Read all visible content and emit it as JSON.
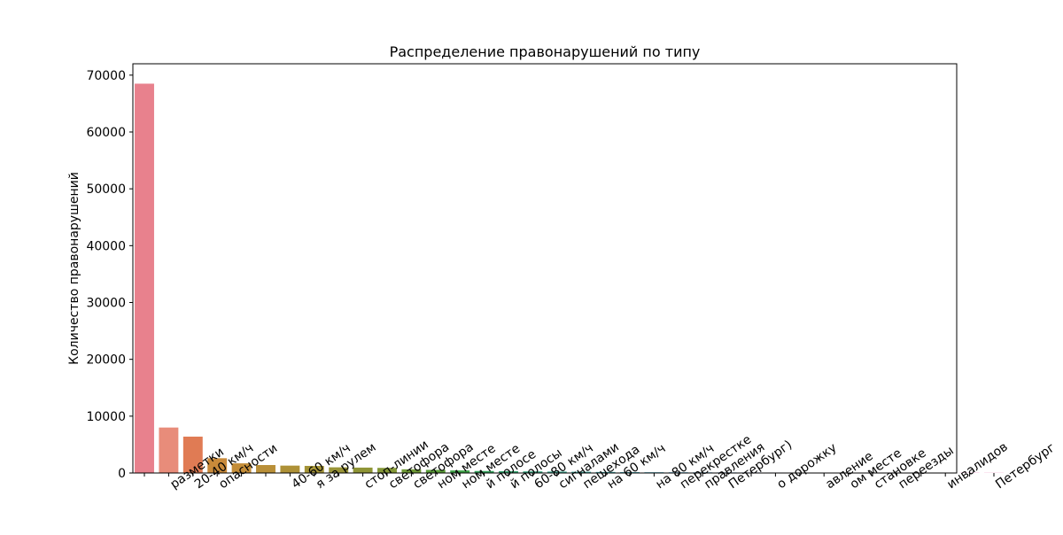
{
  "chart_data": {
    "type": "bar",
    "title": "Распределение правонарушений по типу",
    "xlabel": "",
    "ylabel": "Количество правонарушений",
    "ylim": [
      0,
      72000
    ],
    "yticks": [
      0,
      10000,
      20000,
      30000,
      40000,
      50000,
      60000,
      70000
    ],
    "ytick_labels": [
      "0",
      "10000",
      "20000",
      "30000",
      "40000",
      "50000",
      "60000",
      "70000"
    ],
    "grid": false,
    "legend": "none",
    "categories": [
      "",
      "разметки",
      "20-40 км/ч",
      "опасности",
      "",
      "",
      "40-60 км/ч",
      "я за рулем",
      "",
      "стоп-линии",
      "светофора",
      "светофора",
      "ном месте",
      "ном месте",
      "й полосе",
      "й полосы",
      "60-80 км/ч",
      "сигналами",
      "пешехода",
      "на 60 км/ч",
      "",
      "на 80 км/ч",
      "перекрестке",
      "правления",
      "Петербург)",
      "",
      "о дорожку",
      "",
      "авление",
      "ом месте",
      "становке",
      "переезды",
      "",
      "инвалидов",
      "",
      "Петербург"
    ],
    "values": [
      68500,
      8000,
      6400,
      2600,
      1700,
      1400,
      1300,
      1250,
      1000,
      950,
      900,
      650,
      550,
      450,
      350,
      320,
      280,
      250,
      220,
      180,
      150,
      130,
      120,
      110,
      100,
      90,
      80,
      70,
      60,
      55,
      50,
      45,
      40,
      35,
      30,
      25
    ],
    "colors": [
      "#e8818d",
      "#e88c7a",
      "#e07b54",
      "#c98a3a",
      "#c48d38",
      "#b98f38",
      "#ae9137",
      "#a39337",
      "#999437",
      "#8f9536",
      "#849736",
      "#6f9a36",
      "#5a9d38",
      "#3da146",
      "#36a35e",
      "#36a46f",
      "#38a57f",
      "#39a58e",
      "#3aa69b",
      "#3ba6a7",
      "#3ca6b3",
      "#3ea5bf",
      "#42a3cb",
      "#4aa0d7",
      "#589be0",
      "#6a94e8",
      "#7f8cee",
      "#9383f1",
      "#a67bf1",
      "#b873ee",
      "#c86be6",
      "#d665dc",
      "#e05fcf",
      "#e85cc0",
      "#ec5daf",
      "#ee609e"
    ]
  }
}
